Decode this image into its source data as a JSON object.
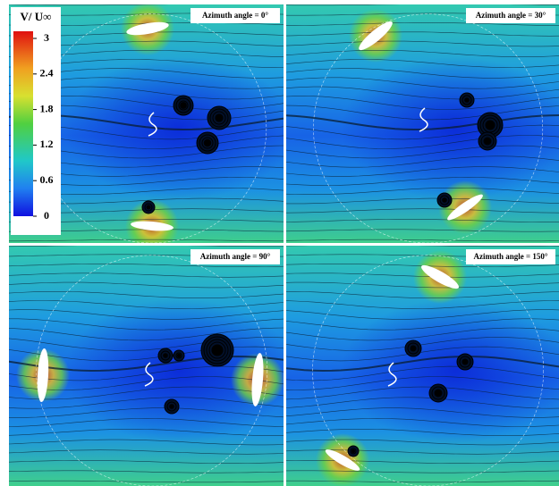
{
  "colorbar": {
    "title": "V/ U∞",
    "ticks": [
      3,
      2.4,
      1.8,
      1.2,
      0.6,
      0
    ]
  },
  "panels": [
    {
      "label": "Azimuth angle = 0°"
    },
    {
      "label": "Azimuth angle = 30°"
    },
    {
      "label": "Azimuth angle = 90°"
    },
    {
      "label": "Azimuth angle = 150°"
    }
  ]
}
